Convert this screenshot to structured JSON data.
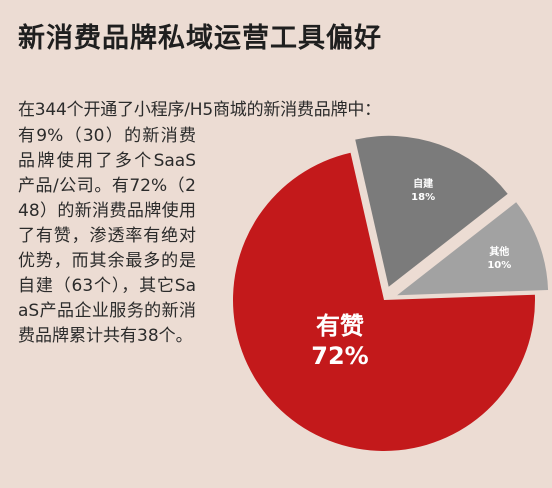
{
  "title": "新消费品牌私域运营工具偏好",
  "subtitle": "在344个开通了小程序/H5商城的新消费品牌中：",
  "paragraph": "有9%（30）的新消费品牌使用了多个SaaS产品/公司。有72%（248）的新消费品牌使用了有赞，渗透率有绝对优势，而其余最多的是自建（63个），其它SaaS产品企业服务的新消费品牌累计共有38个。",
  "chart_data": {
    "type": "pie",
    "slices": [
      {
        "name": "有赞",
        "label": "72%",
        "value": 72,
        "color": "#c3191b"
      },
      {
        "name": "自建",
        "label": "18%",
        "value": 18,
        "color": "#7b7b7b"
      },
      {
        "name": "其他",
        "label": "10%",
        "value": 10,
        "color": "#a2a2a2"
      }
    ]
  }
}
